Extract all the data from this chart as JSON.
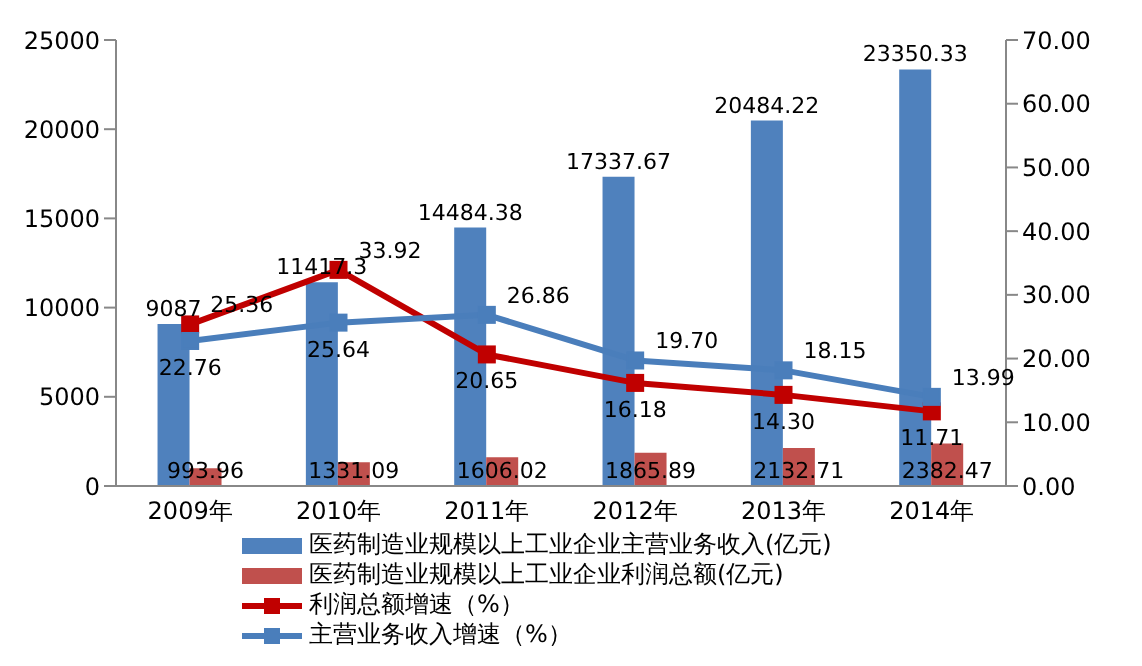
{
  "chart_data": {
    "type": "bar",
    "categories": [
      "2009年",
      "2010年",
      "2011年",
      "2012年",
      "2013年",
      "2014年"
    ],
    "series": [
      {
        "name": "医药制造业规模以上工业企业主营业务收入(亿元)",
        "color": "#4f81bd",
        "values": [
          9087,
          11417.3,
          14484.38,
          17337.67,
          20484.22,
          23350.33
        ],
        "value_labels": [
          "9087",
          "11417.3",
          "14484.38",
          "17337.67",
          "20484.22",
          "23350.33"
        ]
      },
      {
        "name": "医药制造业规模以上工业企业利润总额(亿元)",
        "color": "#c0504d",
        "values": [
          993.96,
          1331.09,
          1606.02,
          1865.89,
          2132.71,
          2382.47
        ],
        "value_labels": [
          "993.96",
          "1331.09",
          "1606.02",
          "1865.89",
          "2132.71",
          "2382.47"
        ]
      },
      {
        "name": "利润总额增速（%）",
        "type": "line",
        "axis": "y2",
        "color": "#c00000",
        "values": [
          25.36,
          33.92,
          20.65,
          16.18,
          14.3,
          11.71
        ],
        "value_labels": [
          "25.36",
          "33.92",
          "20.65",
          "16.18",
          "14.30",
          "11.71"
        ]
      },
      {
        "name": "主营业务收入增速（%）",
        "type": "line",
        "axis": "y2",
        "color": "#4a7ebb",
        "values": [
          22.76,
          25.64,
          26.86,
          19.7,
          18.15,
          13.99
        ],
        "value_labels": [
          "22.76",
          "25.64",
          "26.86",
          "19.70",
          "18.15",
          "13.99"
        ]
      }
    ],
    "ylim": [
      0,
      25000
    ],
    "yticks": [
      0,
      5000,
      10000,
      15000,
      20000,
      25000
    ],
    "y2lim": [
      0,
      70
    ],
    "y2ticks": [
      {
        "value": 0,
        "label": "0.00"
      },
      {
        "value": 10,
        "label": "10.00"
      },
      {
        "value": 20,
        "label": "20.00"
      },
      {
        "value": 30,
        "label": "30.00"
      },
      {
        "value": 40,
        "label": "40.00"
      },
      {
        "value": 50,
        "label": "50.00"
      },
      {
        "value": 60,
        "label": "60.00"
      },
      {
        "value": 70,
        "label": "70.00"
      }
    ],
    "legend": "bottom",
    "marker": "square",
    "line_style": "solid"
  }
}
